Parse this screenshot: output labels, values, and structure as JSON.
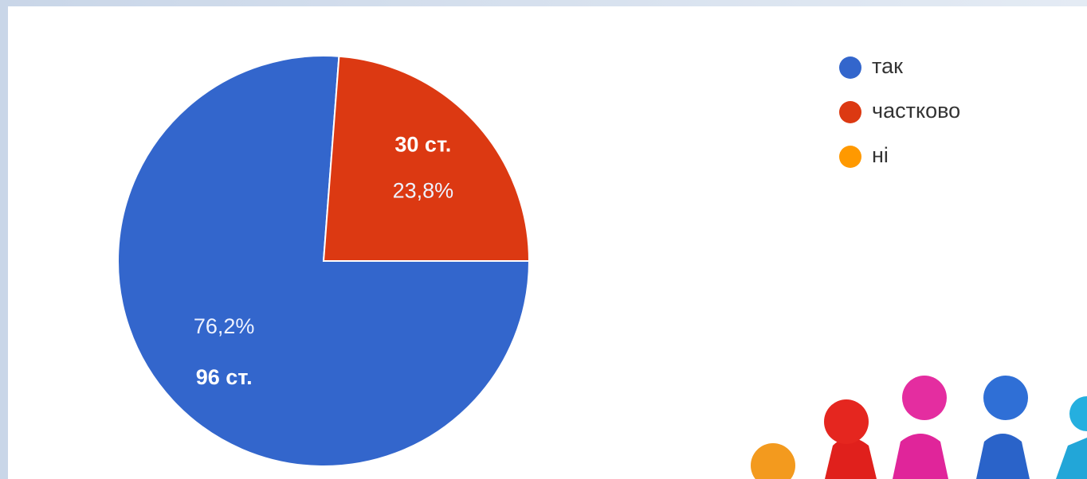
{
  "chart_data": {
    "type": "pie",
    "categories": [
      "так",
      "частково",
      "ні"
    ],
    "values": [
      76.2,
      23.8,
      0
    ],
    "value_labels": [
      "76,2%",
      "23,8%",
      null
    ],
    "counts": [
      96,
      30,
      0
    ],
    "count_labels": [
      "96 ст.",
      "30 ст.",
      null
    ],
    "colors": [
      "#3366cc",
      "#dc3912",
      "#ff9900"
    ],
    "legend": "right"
  }
}
